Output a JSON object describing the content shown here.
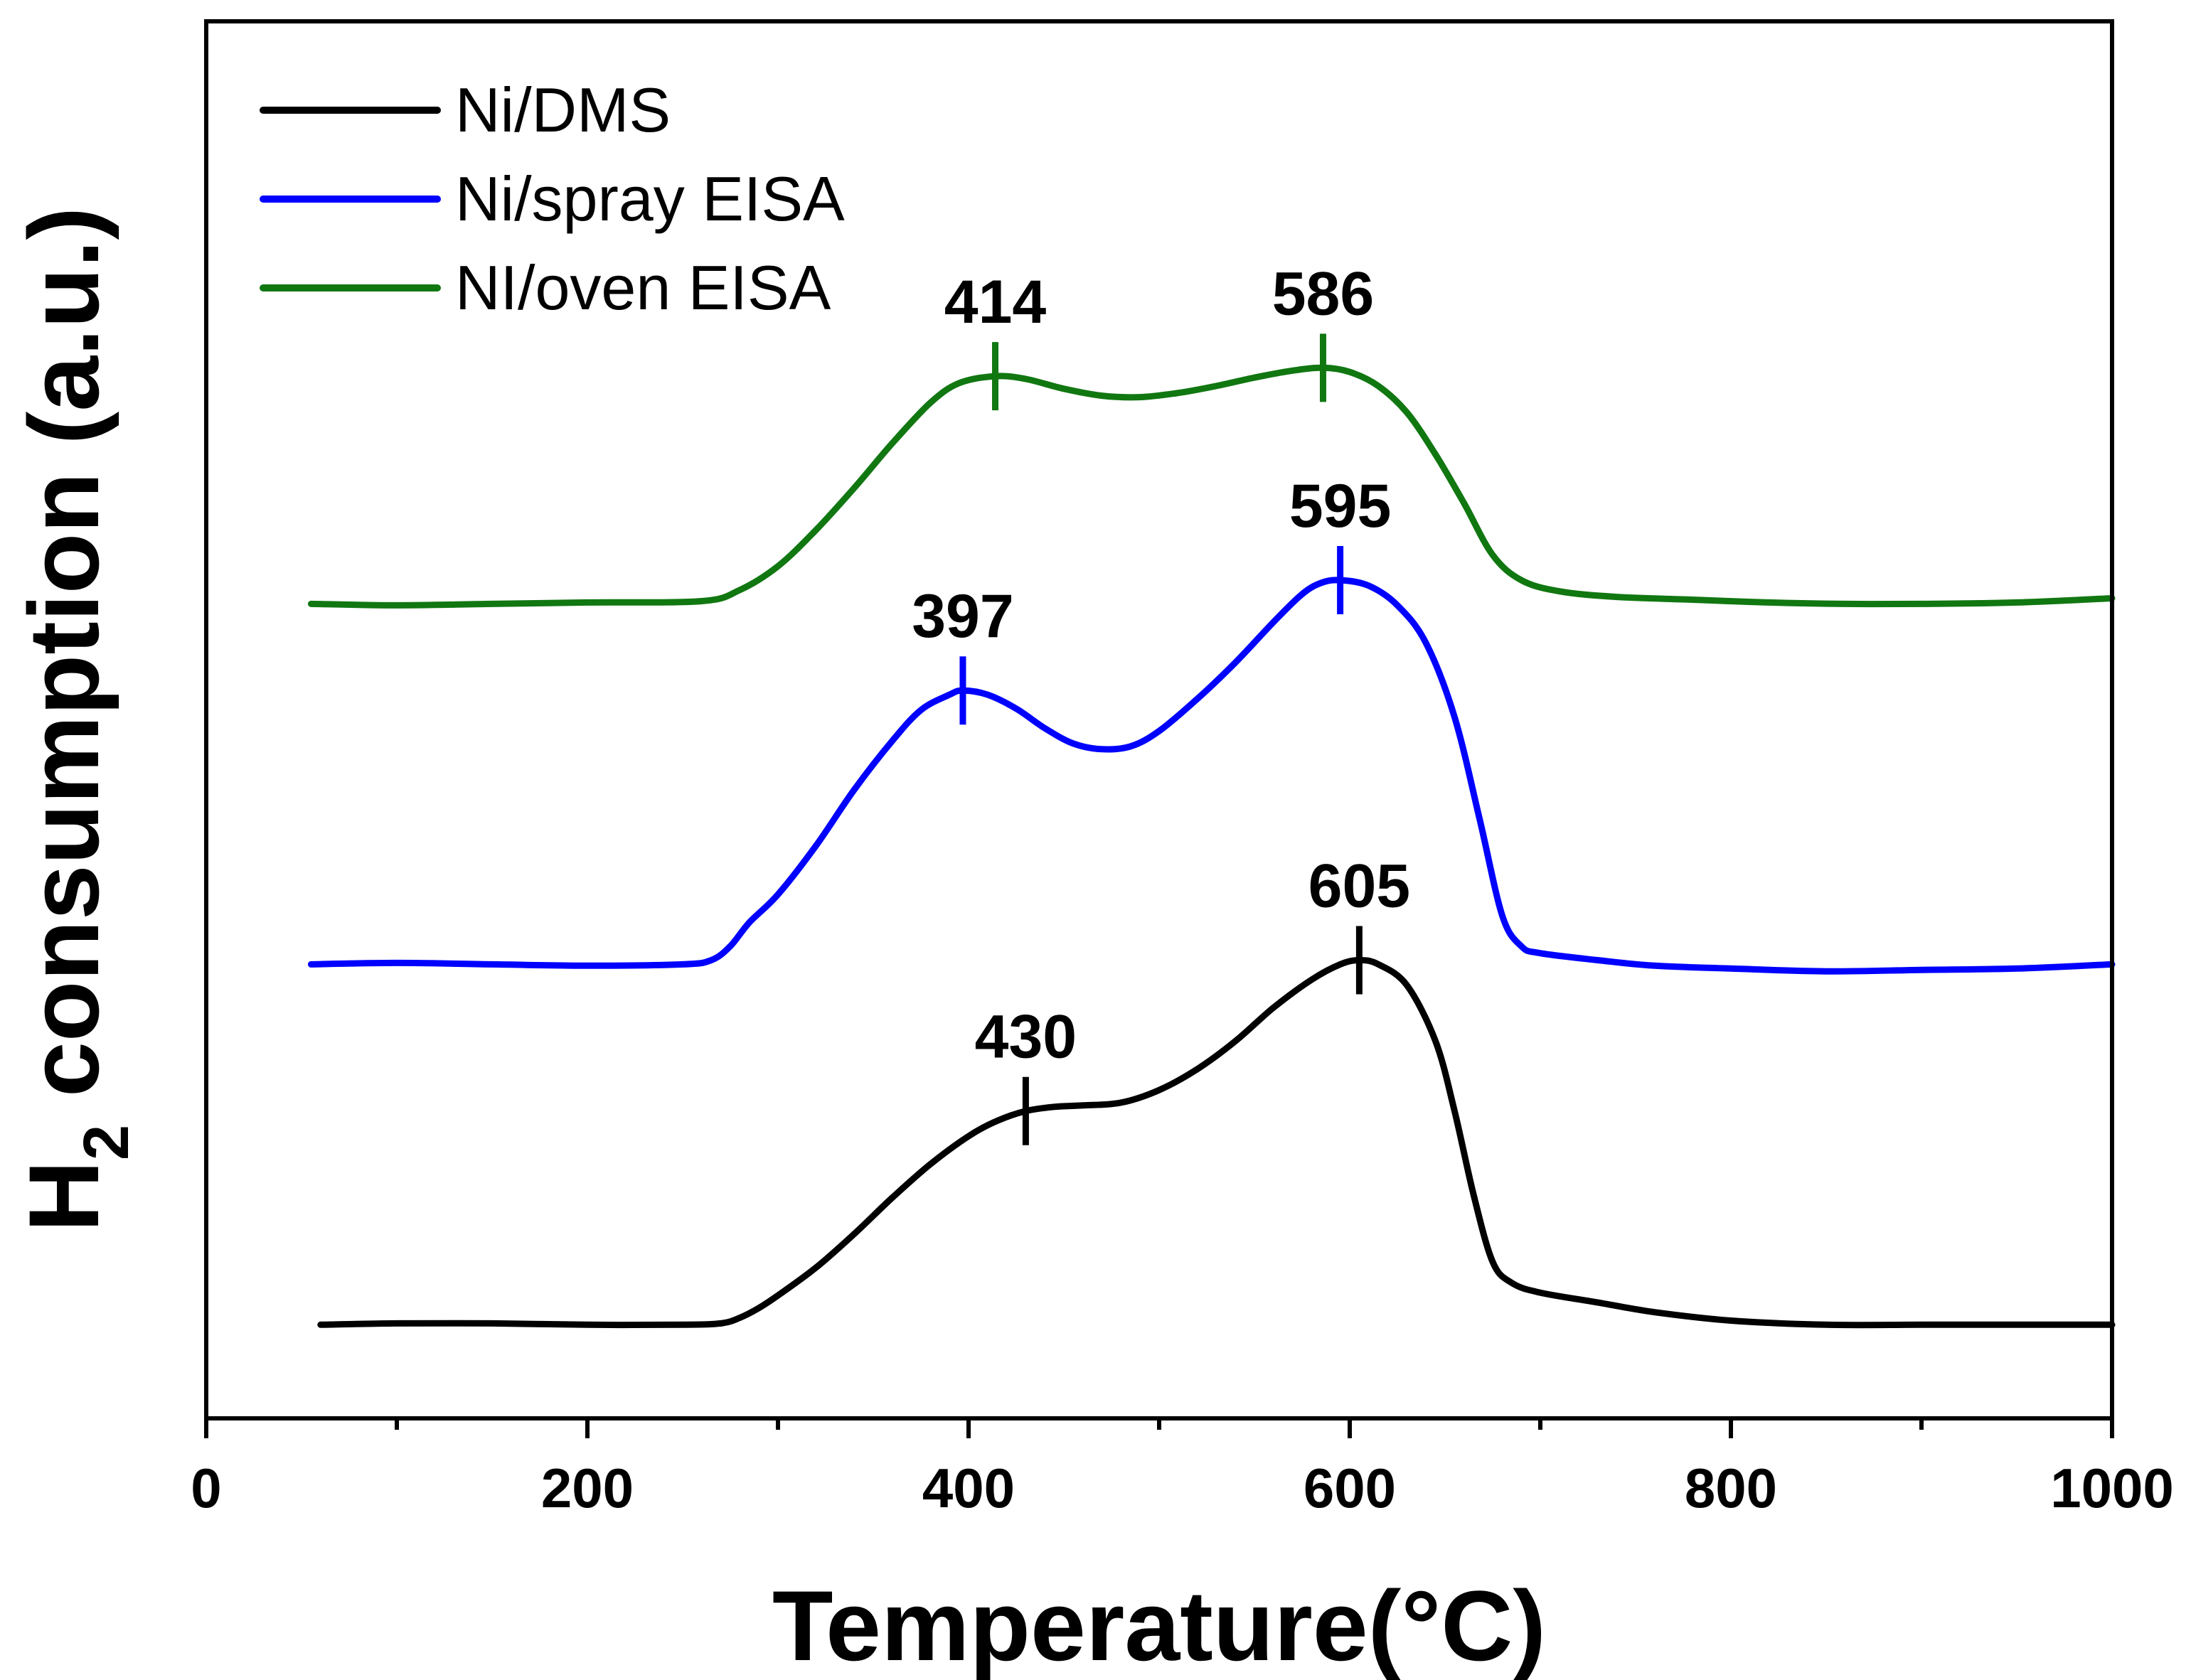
{
  "chart_data": {
    "type": "line",
    "title": "",
    "xlabel": "Temperature(°C)",
    "ylabel_main": "H",
    "ylabel_sub": "2",
    "ylabel_rest": " consumption (a.u.)",
    "xlim": [
      0,
      1000
    ],
    "ylim": [
      0,
      1
    ],
    "x_ticks": [
      0,
      200,
      400,
      600,
      800,
      1000
    ],
    "x_tick_labels": [
      "0",
      "200",
      "400",
      "600",
      "800",
      "1000"
    ],
    "x_minor_ticks": [
      100,
      300,
      500,
      700,
      900
    ],
    "y_ticks_visible": false,
    "grid": false,
    "legend_position": "top-left",
    "series": [
      {
        "name": "Ni/DMS",
        "color": "#000000",
        "points": [
          [
            60,
            0.067
          ],
          [
            100,
            0.068
          ],
          [
            150,
            0.068
          ],
          [
            200,
            0.067
          ],
          [
            250,
            0.067
          ],
          [
            270,
            0.068
          ],
          [
            280,
            0.072
          ],
          [
            290,
            0.079
          ],
          [
            300,
            0.088
          ],
          [
            320,
            0.108
          ],
          [
            340,
            0.132
          ],
          [
            360,
            0.158
          ],
          [
            380,
            0.182
          ],
          [
            400,
            0.202
          ],
          [
            415,
            0.213
          ],
          [
            430,
            0.22
          ],
          [
            445,
            0.223
          ],
          [
            460,
            0.224
          ],
          [
            480,
            0.226
          ],
          [
            500,
            0.235
          ],
          [
            520,
            0.25
          ],
          [
            540,
            0.27
          ],
          [
            560,
            0.294
          ],
          [
            580,
            0.314
          ],
          [
            595,
            0.325
          ],
          [
            605,
            0.328
          ],
          [
            615,
            0.325
          ],
          [
            630,
            0.31
          ],
          [
            645,
            0.27
          ],
          [
            655,
            0.22
          ],
          [
            665,
            0.16
          ],
          [
            675,
            0.112
          ],
          [
            685,
            0.097
          ],
          [
            700,
            0.09
          ],
          [
            730,
            0.083
          ],
          [
            760,
            0.076
          ],
          [
            800,
            0.07
          ],
          [
            850,
            0.067
          ],
          [
            900,
            0.067
          ],
          [
            950,
            0.067
          ],
          [
            1000,
            0.067
          ]
        ]
      },
      {
        "name": "Ni/spray EISA",
        "color": "#0000ff",
        "points": [
          [
            55,
            0.325
          ],
          [
            100,
            0.326
          ],
          [
            150,
            0.325
          ],
          [
            200,
            0.324
          ],
          [
            250,
            0.325
          ],
          [
            265,
            0.328
          ],
          [
            275,
            0.338
          ],
          [
            285,
            0.355
          ],
          [
            300,
            0.375
          ],
          [
            320,
            0.41
          ],
          [
            340,
            0.45
          ],
          [
            360,
            0.485
          ],
          [
            375,
            0.507
          ],
          [
            390,
            0.518
          ],
          [
            397,
            0.521
          ],
          [
            410,
            0.518
          ],
          [
            425,
            0.508
          ],
          [
            440,
            0.494
          ],
          [
            455,
            0.483
          ],
          [
            470,
            0.479
          ],
          [
            485,
            0.481
          ],
          [
            500,
            0.492
          ],
          [
            520,
            0.515
          ],
          [
            540,
            0.541
          ],
          [
            560,
            0.57
          ],
          [
            575,
            0.59
          ],
          [
            585,
            0.598
          ],
          [
            595,
            0.6
          ],
          [
            610,
            0.596
          ],
          [
            625,
            0.582
          ],
          [
            640,
            0.555
          ],
          [
            655,
            0.502
          ],
          [
            668,
            0.43
          ],
          [
            680,
            0.36
          ],
          [
            690,
            0.338
          ],
          [
            700,
            0.333
          ],
          [
            730,
            0.328
          ],
          [
            760,
            0.324
          ],
          [
            800,
            0.322
          ],
          [
            850,
            0.32
          ],
          [
            900,
            0.321
          ],
          [
            950,
            0.322
          ],
          [
            1000,
            0.325
          ]
        ]
      },
      {
        "name": "NI/oven EISA",
        "color": "#117711",
        "points": [
          [
            55,
            0.583
          ],
          [
            100,
            0.582
          ],
          [
            150,
            0.583
          ],
          [
            200,
            0.584
          ],
          [
            260,
            0.585
          ],
          [
            280,
            0.593
          ],
          [
            300,
            0.61
          ],
          [
            320,
            0.636
          ],
          [
            340,
            0.666
          ],
          [
            360,
            0.698
          ],
          [
            380,
            0.727
          ],
          [
            395,
            0.741
          ],
          [
            414,
            0.746
          ],
          [
            430,
            0.744
          ],
          [
            450,
            0.737
          ],
          [
            470,
            0.732
          ],
          [
            490,
            0.731
          ],
          [
            510,
            0.734
          ],
          [
            530,
            0.739
          ],
          [
            550,
            0.745
          ],
          [
            570,
            0.75
          ],
          [
            586,
            0.752
          ],
          [
            600,
            0.749
          ],
          [
            615,
            0.739
          ],
          [
            630,
            0.72
          ],
          [
            645,
            0.69
          ],
          [
            660,
            0.655
          ],
          [
            675,
            0.618
          ],
          [
            690,
            0.6
          ],
          [
            710,
            0.592
          ],
          [
            740,
            0.588
          ],
          [
            780,
            0.586
          ],
          [
            820,
            0.584
          ],
          [
            860,
            0.583
          ],
          [
            900,
            0.583
          ],
          [
            950,
            0.584
          ],
          [
            1000,
            0.587
          ]
        ]
      }
    ],
    "peaks": [
      {
        "series": 0,
        "x": 430,
        "label": "430"
      },
      {
        "series": 0,
        "x": 605,
        "label": "605"
      },
      {
        "series": 1,
        "x": 397,
        "label": "397"
      },
      {
        "series": 1,
        "x": 595,
        "label": "595"
      },
      {
        "series": 2,
        "x": 414,
        "label": "414"
      },
      {
        "series": 2,
        "x": 586,
        "label": "586"
      }
    ]
  }
}
